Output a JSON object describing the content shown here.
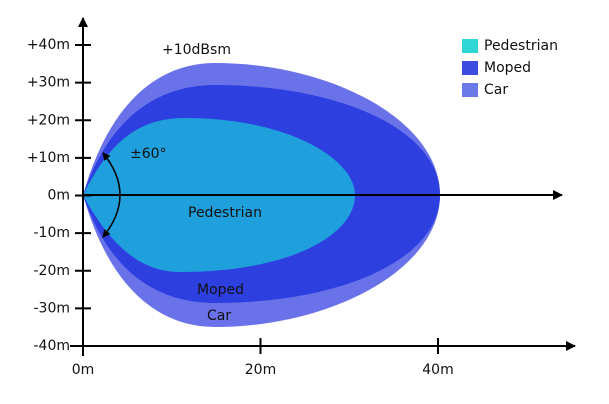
{
  "y_axis": {
    "ticks": [
      "+40m",
      "+30m",
      "+20m",
      "+10m",
      "0m",
      "-10m",
      "-20m",
      "-30m",
      "-40m"
    ]
  },
  "x_axis": {
    "ticks": [
      "0m",
      "20m",
      "40m"
    ]
  },
  "legend": [
    "Pedestrian",
    "Moped",
    "Car"
  ],
  "annotations": {
    "rcs": "+10dBsm",
    "angle": "±60°",
    "pedestrian": "Pedestrian",
    "moped": "Moped",
    "car": "Car"
  }
}
